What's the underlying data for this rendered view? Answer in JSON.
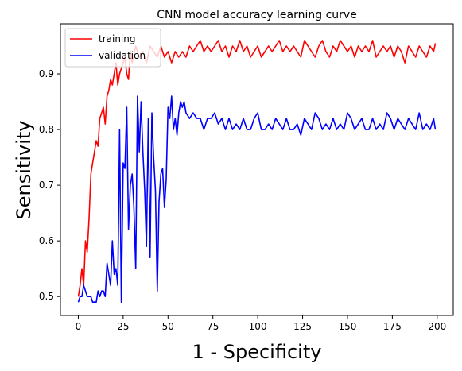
{
  "chart_data": {
    "type": "line",
    "title": "CNN model accuracy learning curve",
    "xlabel": "1 - Specificity",
    "ylabel": "Sensitivity",
    "xlim": [
      -9.95,
      208.95
    ],
    "ylim": [
      0.466,
      0.99
    ],
    "x_ticks": [
      0,
      25,
      50,
      75,
      100,
      125,
      150,
      175,
      200
    ],
    "y_ticks": [
      0.5,
      0.6,
      0.7,
      0.8,
      0.9
    ],
    "grid": false,
    "legend_position": "top-left",
    "series": [
      {
        "name": "training",
        "color": "#ff0000",
        "x": [
          0,
          1,
          2,
          3,
          4,
          5,
          6,
          7,
          8,
          9,
          10,
          11,
          12,
          13,
          14,
          15,
          16,
          17,
          18,
          19,
          20,
          21,
          22,
          23,
          24,
          25,
          26,
          27,
          28,
          29,
          30,
          32,
          34,
          36,
          38,
          40,
          42,
          44,
          46,
          48,
          50,
          52,
          54,
          56,
          58,
          60,
          62,
          64,
          66,
          68,
          70,
          72,
          74,
          76,
          78,
          80,
          82,
          84,
          86,
          88,
          90,
          92,
          94,
          96,
          98,
          100,
          102,
          104,
          106,
          108,
          110,
          112,
          114,
          116,
          118,
          120,
          122,
          124,
          126,
          128,
          130,
          132,
          134,
          136,
          138,
          140,
          142,
          144,
          146,
          148,
          150,
          152,
          154,
          156,
          158,
          160,
          162,
          164,
          166,
          168,
          170,
          172,
          174,
          176,
          178,
          180,
          182,
          184,
          186,
          188,
          190,
          192,
          194,
          196,
          198,
          199
        ],
        "y": [
          0.5,
          0.52,
          0.55,
          0.52,
          0.6,
          0.58,
          0.64,
          0.72,
          0.74,
          0.76,
          0.78,
          0.77,
          0.82,
          0.83,
          0.84,
          0.81,
          0.86,
          0.87,
          0.89,
          0.88,
          0.9,
          0.92,
          0.88,
          0.9,
          0.91,
          0.92,
          0.93,
          0.9,
          0.89,
          0.94,
          0.92,
          0.95,
          0.93,
          0.94,
          0.92,
          0.95,
          0.94,
          0.93,
          0.95,
          0.93,
          0.94,
          0.92,
          0.94,
          0.93,
          0.94,
          0.93,
          0.95,
          0.94,
          0.95,
          0.96,
          0.94,
          0.95,
          0.94,
          0.95,
          0.96,
          0.94,
          0.95,
          0.93,
          0.95,
          0.94,
          0.96,
          0.94,
          0.95,
          0.93,
          0.94,
          0.95,
          0.93,
          0.94,
          0.95,
          0.94,
          0.95,
          0.96,
          0.94,
          0.95,
          0.94,
          0.95,
          0.94,
          0.93,
          0.96,
          0.95,
          0.94,
          0.93,
          0.95,
          0.96,
          0.94,
          0.93,
          0.95,
          0.94,
          0.96,
          0.95,
          0.94,
          0.95,
          0.93,
          0.95,
          0.94,
          0.95,
          0.94,
          0.96,
          0.93,
          0.94,
          0.95,
          0.94,
          0.95,
          0.93,
          0.95,
          0.94,
          0.92,
          0.95,
          0.94,
          0.93,
          0.95,
          0.94,
          0.93,
          0.95,
          0.94,
          0.955
        ]
      },
      {
        "name": "validation",
        "color": "#0000ff",
        "x": [
          0,
          1,
          2,
          3,
          4,
          5,
          6,
          7,
          8,
          9,
          10,
          11,
          12,
          13,
          14,
          15,
          16,
          17,
          18,
          19,
          20,
          21,
          22,
          23,
          24,
          25,
          26,
          27,
          28,
          29,
          30,
          31,
          32,
          33,
          34,
          35,
          36,
          37,
          38,
          39,
          40,
          41,
          42,
          43,
          44,
          45,
          46,
          47,
          48,
          49,
          50,
          51,
          52,
          53,
          54,
          55,
          56,
          57,
          58,
          59,
          60,
          62,
          64,
          66,
          68,
          70,
          72,
          74,
          76,
          78,
          80,
          82,
          84,
          86,
          88,
          90,
          92,
          94,
          96,
          98,
          100,
          102,
          104,
          106,
          108,
          110,
          112,
          114,
          116,
          118,
          120,
          122,
          124,
          126,
          128,
          130,
          132,
          134,
          136,
          138,
          140,
          142,
          144,
          146,
          148,
          150,
          152,
          154,
          156,
          158,
          160,
          162,
          164,
          166,
          168,
          170,
          172,
          174,
          176,
          178,
          180,
          182,
          184,
          186,
          188,
          190,
          192,
          194,
          196,
          198,
          199
        ],
        "y": [
          0.49,
          0.5,
          0.5,
          0.52,
          0.51,
          0.5,
          0.5,
          0.5,
          0.49,
          0.49,
          0.49,
          0.51,
          0.5,
          0.51,
          0.51,
          0.5,
          0.56,
          0.54,
          0.52,
          0.6,
          0.54,
          0.55,
          0.52,
          0.8,
          0.49,
          0.74,
          0.73,
          0.84,
          0.62,
          0.7,
          0.72,
          0.66,
          0.55,
          0.86,
          0.76,
          0.85,
          0.76,
          0.69,
          0.59,
          0.82,
          0.57,
          0.83,
          0.75,
          0.69,
          0.51,
          0.67,
          0.72,
          0.73,
          0.66,
          0.71,
          0.84,
          0.82,
          0.86,
          0.8,
          0.82,
          0.79,
          0.83,
          0.85,
          0.84,
          0.85,
          0.83,
          0.82,
          0.83,
          0.82,
          0.82,
          0.8,
          0.82,
          0.82,
          0.83,
          0.81,
          0.82,
          0.8,
          0.82,
          0.8,
          0.81,
          0.8,
          0.82,
          0.8,
          0.8,
          0.82,
          0.83,
          0.8,
          0.8,
          0.81,
          0.8,
          0.82,
          0.81,
          0.8,
          0.82,
          0.8,
          0.8,
          0.81,
          0.79,
          0.82,
          0.81,
          0.8,
          0.83,
          0.82,
          0.8,
          0.81,
          0.8,
          0.82,
          0.8,
          0.81,
          0.8,
          0.83,
          0.82,
          0.8,
          0.81,
          0.82,
          0.8,
          0.8,
          0.82,
          0.8,
          0.81,
          0.8,
          0.83,
          0.82,
          0.8,
          0.82,
          0.81,
          0.8,
          0.82,
          0.81,
          0.8,
          0.83,
          0.8,
          0.81,
          0.8,
          0.82,
          0.8
        ]
      }
    ]
  }
}
